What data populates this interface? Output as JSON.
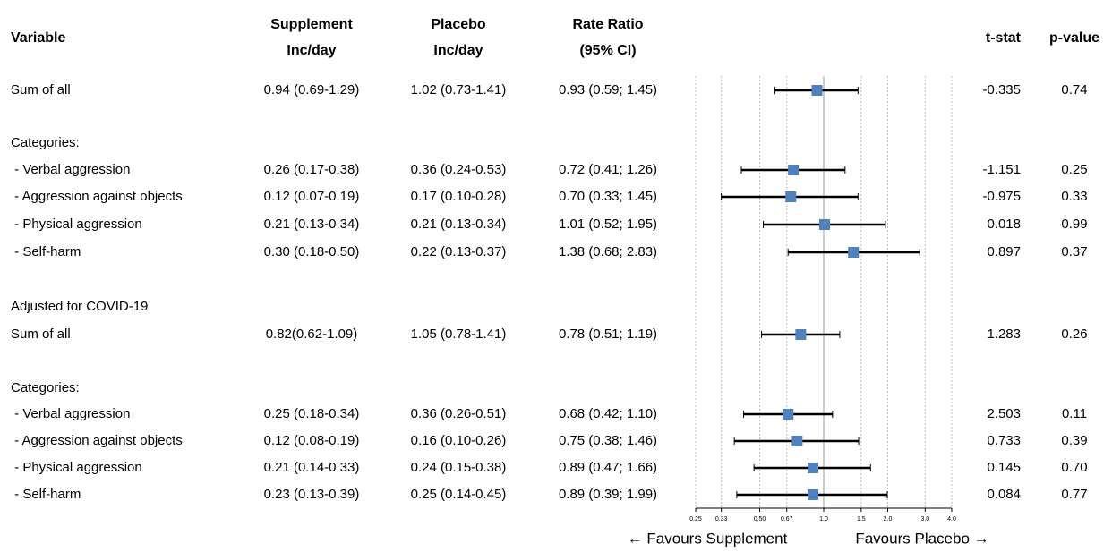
{
  "chart_data": {
    "type": "forest",
    "columns": {
      "variable": "Variable",
      "supplement": [
        "Supplement",
        "Inc/day"
      ],
      "placebo": [
        "Placebo",
        "Inc/day"
      ],
      "rate_ratio": [
        "Rate Ratio",
        "(95% CI)"
      ],
      "t_stat": "t-stat",
      "p_value": "p-value"
    },
    "rows": [
      {
        "variable": "Sum of all",
        "supplement": "0.94 (0.69-1.29)",
        "placebo": "1.02 (0.73-1.41)",
        "rate_ratio": "0.93 (0.59; 1.45)",
        "estimate": 0.93,
        "lower": 0.59,
        "upper": 1.45,
        "t_stat": "-0.335",
        "p_value": "0.74"
      },
      {
        "variable": "Categories:"
      },
      {
        "variable": " - Verbal aggression",
        "supplement": "0.26 (0.17-0.38)",
        "placebo": "0.36 (0.24-0.53)",
        "rate_ratio": "0.72 (0.41; 1.26)",
        "estimate": 0.72,
        "lower": 0.41,
        "upper": 1.26,
        "t_stat": "-1.151",
        "p_value": "0.25"
      },
      {
        "variable": " - Aggression against objects",
        "supplement": "0.12 (0.07-0.19)",
        "placebo": "0.17 (0.10-0.28)",
        "rate_ratio": "0.70 (0.33; 1.45)",
        "estimate": 0.7,
        "lower": 0.33,
        "upper": 1.45,
        "t_stat": "-0.975",
        "p_value": "0.33"
      },
      {
        "variable": " - Physical aggression",
        "supplement": "0.21 (0.13-0.34)",
        "placebo": "0.21 (0.13-0.34)",
        "rate_ratio": "1.01 (0.52; 1.95)",
        "estimate": 1.01,
        "lower": 0.52,
        "upper": 1.95,
        "t_stat": "0.018",
        "p_value": "0.99"
      },
      {
        "variable": " - Self-harm",
        "supplement": "0.30 (0.18-0.50)",
        "placebo": "0.22 (0.13-0.37)",
        "rate_ratio": "1.38 (0.68; 2.83)",
        "estimate": 1.38,
        "lower": 0.68,
        "upper": 2.83,
        "t_stat": "0.897",
        "p_value": "0.37"
      },
      {
        "variable": "Adjusted for COVID-19"
      },
      {
        "variable": "Sum of all",
        "supplement": "0.82(0.62-1.09)",
        "placebo": "1.05 (0.78-1.41)",
        "rate_ratio": "0.78 (0.51; 1.19)",
        "estimate": 0.78,
        "lower": 0.51,
        "upper": 1.19,
        "t_stat": "1.283",
        "p_value": "0.26"
      },
      {
        "variable": "Categories:"
      },
      {
        "variable": " - Verbal aggression",
        "supplement": "0.25 (0.18-0.34)",
        "placebo": "0.36 (0.26-0.51)",
        "rate_ratio": "0.68 (0.42; 1.10)",
        "estimate": 0.68,
        "lower": 0.42,
        "upper": 1.1,
        "t_stat": "2.503",
        "p_value": "0.11"
      },
      {
        "variable": " - Aggression against objects",
        "supplement": "0.12 (0.08-0.19)",
        "placebo": "0.16 (0.10-0.26)",
        "rate_ratio": "0.75 (0.38; 1.46)",
        "estimate": 0.75,
        "lower": 0.38,
        "upper": 1.46,
        "t_stat": "0.733",
        "p_value": "0.39"
      },
      {
        "variable": " - Physical aggression",
        "supplement": "0.21 (0.14-0.33)",
        "placebo": "0.24 (0.15-0.38)",
        "rate_ratio": "0.89 (0.47; 1.66)",
        "estimate": 0.89,
        "lower": 0.47,
        "upper": 1.66,
        "t_stat": "0.145",
        "p_value": "0.70"
      },
      {
        "variable": " - Self-harm",
        "supplement": "0.23 (0.13-0.39)",
        "placebo": "0.25 (0.14-0.45)",
        "rate_ratio": "0.89 (0.39; 1.99)",
        "estimate": 0.89,
        "lower": 0.39,
        "upper": 1.99,
        "t_stat": "0.084",
        "p_value": "0.77"
      }
    ],
    "xscale": "log",
    "xlim": [
      0.25,
      4
    ],
    "xticks": [
      0.25,
      0.33,
      {
        "value": 0.5,
        "label": "0.50"
      },
      0.67,
      {
        "value": 1,
        "label": "1.0"
      },
      1.5,
      {
        "value": 2,
        "label": "2.0"
      },
      {
        "value": 3,
        "label": "3.0"
      },
      {
        "value": 4,
        "label": "4.0"
      }
    ],
    "reference": 1,
    "grid": true,
    "color": "#4f81bd",
    "favours_left": "← Favours Supplement",
    "favours_right": "Favours Placebo →"
  }
}
